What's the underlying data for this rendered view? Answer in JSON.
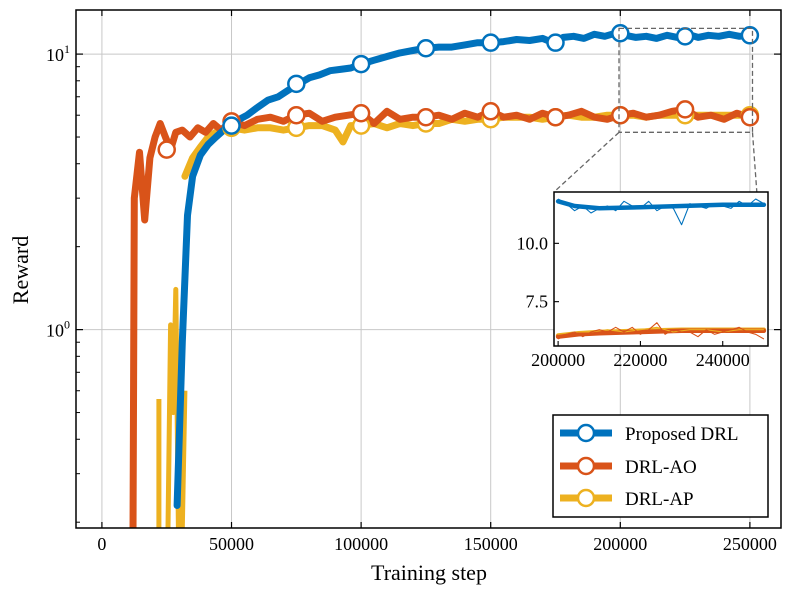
{
  "chart_data": {
    "type": "line",
    "xlabel": "Training step",
    "ylabel": "Reward",
    "xlim": [
      -10000,
      262000
    ],
    "ylim_log10": [
      -0.72,
      1.16
    ],
    "yscale": "log",
    "x_ticks": [
      0,
      50000,
      100000,
      150000,
      200000,
      250000
    ],
    "x_tick_labels": [
      "0",
      "50000",
      "100000",
      "150000",
      "200000",
      "250000"
    ],
    "y_ticks": [
      1,
      10
    ],
    "y_tick_labels": [
      {
        "base": "10",
        "exp": "0"
      },
      {
        "base": "10",
        "exp": "1"
      }
    ],
    "grid": true,
    "legend_position": "bottom-right",
    "series": [
      {
        "name": "Proposed DRL",
        "color": "#0072BD",
        "x": [
          29000,
          31000,
          33000,
          35000,
          38000,
          41000,
          44000,
          47000,
          50000,
          53000,
          56000,
          60000,
          64000,
          68000,
          72000,
          76000,
          80000,
          84000,
          88000,
          92000,
          96000,
          100000,
          105000,
          110000,
          115000,
          120000,
          125000,
          130000,
          135000,
          140000,
          145000,
          150000,
          155000,
          160000,
          165000,
          170000,
          174000,
          178000,
          182000,
          186000,
          190000,
          194000,
          198000,
          202000,
          206000,
          210000,
          214000,
          218000,
          222000,
          226000,
          230000,
          234000,
          238000,
          242000,
          246000,
          250000
        ],
        "values": [
          0.23,
          0.9,
          2.6,
          3.6,
          4.3,
          4.7,
          5.0,
          5.3,
          5.5,
          5.8,
          6.0,
          6.4,
          6.8,
          7.0,
          7.4,
          7.8,
          8.2,
          8.4,
          8.7,
          8.8,
          8.9,
          9.2,
          9.5,
          9.8,
          10.1,
          10.3,
          10.5,
          10.6,
          10.6,
          10.8,
          11.0,
          11.0,
          11.1,
          11.3,
          11.2,
          11.4,
          11.0,
          11.5,
          11.6,
          11.4,
          11.8,
          11.6,
          11.9,
          11.7,
          11.5,
          11.6,
          11.4,
          11.7,
          11.5,
          11.8,
          11.5,
          11.7,
          11.6,
          11.8,
          11.6,
          11.7
        ],
        "marker_x": [
          50000,
          75000,
          100000,
          125000,
          150000,
          175000,
          200000,
          225000,
          250000
        ],
        "marker_values": [
          5.5,
          7.8,
          9.2,
          10.5,
          11.0,
          11.0,
          11.9,
          11.6,
          11.7
        ]
      },
      {
        "name": "DRL-AO",
        "color": "#D95319",
        "x": [
          12000,
          12500,
          14500,
          16500,
          18500,
          20500,
          22500,
          24500,
          26500,
          28500,
          31000,
          34000,
          37000,
          40000,
          43000,
          46000,
          50000,
          55000,
          60000,
          65000,
          70000,
          75000,
          80000,
          85000,
          90000,
          95000,
          100000,
          105000,
          110000,
          115000,
          120000,
          125000,
          130000,
          135000,
          140000,
          145000,
          150000,
          155000,
          160000,
          165000,
          170000,
          175000,
          180000,
          185000,
          190000,
          195000,
          200000,
          205000,
          210000,
          215000,
          220000,
          225000,
          230000,
          235000,
          240000,
          245000,
          250000
        ],
        "values": [
          0.18,
          3.0,
          4.4,
          2.5,
          4.2,
          5.0,
          5.6,
          5.0,
          4.5,
          5.2,
          5.3,
          5.0,
          5.4,
          5.2,
          5.6,
          5.3,
          5.7,
          5.5,
          5.8,
          5.9,
          5.7,
          6.0,
          6.1,
          5.7,
          5.9,
          6.0,
          6.1,
          5.6,
          6.2,
          5.8,
          5.9,
          5.9,
          6.0,
          5.8,
          6.1,
          5.9,
          6.2,
          5.9,
          6.0,
          5.8,
          6.1,
          5.9,
          6.0,
          6.2,
          5.9,
          5.8,
          6.0,
          6.1,
          5.9,
          6.0,
          6.2,
          6.3,
          5.9,
          6.0,
          5.8,
          6.1,
          5.9
        ],
        "marker_x": [
          25000,
          50000,
          75000,
          100000,
          125000,
          150000,
          175000,
          200000,
          225000,
          250000
        ],
        "marker_values": [
          4.5,
          5.7,
          6.0,
          6.1,
          5.9,
          6.2,
          5.9,
          6.0,
          6.3,
          5.9
        ]
      },
      {
        "name": "DRL-AP",
        "color": "#EDB120",
        "x": [
          32000,
          35000,
          38000,
          41000,
          44000,
          47000,
          50000,
          55000,
          60000,
          65000,
          70000,
          75000,
          80000,
          85000,
          90000,
          93000,
          96000,
          100000,
          105000,
          110000,
          115000,
          120000,
          125000,
          130000,
          135000,
          140000,
          145000,
          150000,
          155000,
          160000,
          165000,
          170000,
          175000,
          180000,
          185000,
          190000,
          195000,
          200000,
          205000,
          210000,
          215000,
          220000,
          225000,
          230000,
          235000,
          240000,
          245000,
          250000
        ],
        "values": [
          3.6,
          4.2,
          4.6,
          5.0,
          5.2,
          5.3,
          5.4,
          5.3,
          5.4,
          5.4,
          5.3,
          5.4,
          5.5,
          5.5,
          5.3,
          4.8,
          5.5,
          5.5,
          5.6,
          5.4,
          5.6,
          5.5,
          5.6,
          5.6,
          5.8,
          5.7,
          5.8,
          5.8,
          5.9,
          5.9,
          5.9,
          5.8,
          5.9,
          6.0,
          5.9,
          5.9,
          6.0,
          6.0,
          6.0,
          5.9,
          6.0,
          6.0,
          6.0,
          6.0,
          6.0,
          6.0,
          6.0,
          6.0
        ],
        "marker_x": [
          50000,
          75000,
          100000,
          125000,
          150000,
          175000,
          200000,
          225000,
          250000
        ],
        "marker_values": [
          5.4,
          5.4,
          5.5,
          5.6,
          5.8,
          5.9,
          6.0,
          6.0,
          6.0
        ],
        "spikes": [
          {
            "x": [
              22000,
              22000
            ],
            "values": [
              0.56,
              0.19
            ]
          },
          {
            "x": [
              25500,
              26500,
              27500,
              28500,
              29500
            ],
            "values": [
              0.19,
              1.04,
              0.5,
              1.4,
              0.19
            ]
          },
          {
            "x": [
              31000,
              32000
            ],
            "values": [
              0.19,
              0.6
            ]
          }
        ]
      }
    ],
    "inset": {
      "xlim": [
        199000,
        251000
      ],
      "ylim": [
        5.6,
        12.2
      ],
      "x_ticks": [
        200000,
        220000,
        240000
      ],
      "x_tick_labels": [
        "200000",
        "220000",
        "240000"
      ],
      "y_ticks": [
        7.5,
        10.0
      ],
      "y_tick_labels": [
        "7.5",
        "10.0"
      ],
      "zoom_box_x": [
        199500,
        251000
      ],
      "zoom_box_y": [
        5.2,
        12.4
      ],
      "series_smooth": [
        {
          "x": [
            200000,
            204000,
            210000,
            220000,
            230000,
            240000,
            250000
          ],
          "values": [
            11.8,
            11.6,
            11.5,
            11.55,
            11.6,
            11.65,
            11.65
          ]
        },
        {
          "x": [
            200000,
            205000,
            210000,
            220000,
            230000,
            240000,
            250000
          ],
          "values": [
            6.0,
            6.1,
            6.15,
            6.2,
            6.25,
            6.25,
            6.25
          ]
        },
        {
          "x": [
            200000,
            205000,
            210000,
            220000,
            230000,
            240000,
            250000
          ],
          "values": [
            6.05,
            6.15,
            6.2,
            6.25,
            6.3,
            6.3,
            6.3
          ]
        }
      ],
      "series_raw": [
        {
          "x": [
            200000,
            202000,
            204000,
            206000,
            208000,
            210000,
            212000,
            214000,
            216000,
            218000,
            220000,
            222000,
            224000,
            226000,
            228000,
            230000,
            232000,
            234000,
            236000,
            238000,
            240000,
            242000,
            244000,
            246000,
            248000,
            250000
          ],
          "values": [
            11.9,
            11.7,
            11.4,
            11.6,
            11.3,
            11.5,
            11.6,
            11.4,
            11.8,
            11.6,
            11.5,
            11.8,
            11.4,
            11.6,
            11.5,
            10.8,
            11.7,
            11.6,
            11.5,
            11.7,
            11.6,
            11.5,
            11.8,
            11.6,
            11.9,
            11.7
          ]
        },
        {
          "x": [
            200000,
            202000,
            204000,
            206000,
            208000,
            210000,
            212000,
            214000,
            216000,
            218000,
            220000,
            222000,
            224000,
            226000,
            228000,
            230000,
            232000,
            234000,
            236000,
            238000,
            240000,
            242000,
            244000,
            246000,
            248000,
            250000
          ],
          "values": [
            5.9,
            6.1,
            6.2,
            6.0,
            6.2,
            6.3,
            6.2,
            6.4,
            6.2,
            6.4,
            6.1,
            6.3,
            6.6,
            6.1,
            6.3,
            6.2,
            6.2,
            6.0,
            6.3,
            6.1,
            6.2,
            6.3,
            6.4,
            6.2,
            6.1,
            5.9
          ]
        },
        {
          "x": [
            200000,
            204000,
            208000,
            212000,
            216000,
            220000,
            224000,
            228000,
            232000,
            236000,
            240000,
            244000,
            248000,
            250000
          ],
          "values": [
            6.1,
            6.2,
            6.2,
            6.3,
            6.2,
            6.3,
            6.4,
            6.2,
            6.3,
            6.3,
            6.2,
            6.3,
            6.3,
            6.3
          ]
        }
      ]
    }
  }
}
